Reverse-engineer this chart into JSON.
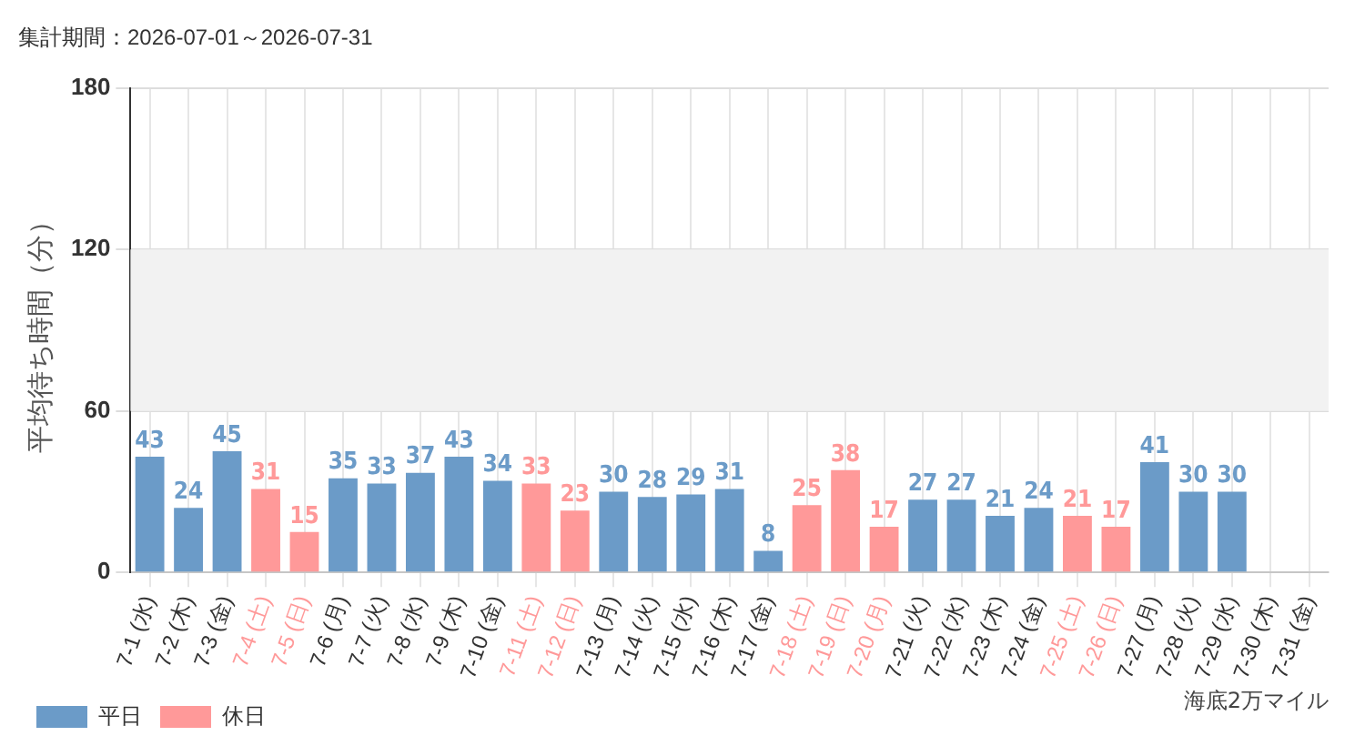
{
  "chart_data": {
    "type": "bar",
    "title": "集計期間：2026-07-01～2026-07-31",
    "ylabel": "平均待ち時間（分）",
    "categories": [
      "7-1 (水)",
      "7-2 (木)",
      "7-3 (金)",
      "7-4 (土)",
      "7-5 (日)",
      "7-6 (月)",
      "7-7 (火)",
      "7-8 (水)",
      "7-9 (木)",
      "7-10 (金)",
      "7-11 (土)",
      "7-12 (日)",
      "7-13 (月)",
      "7-14 (火)",
      "7-15 (水)",
      "7-16 (木)",
      "7-17 (金)",
      "7-18 (土)",
      "7-19 (日)",
      "7-20 (月)",
      "7-21 (火)",
      "7-22 (水)",
      "7-23 (木)",
      "7-24 (金)",
      "7-25 (土)",
      "7-26 (日)",
      "7-27 (月)",
      "7-28 (火)",
      "7-29 (水)",
      "7-30 (木)",
      "7-31 (金)"
    ],
    "series": [
      {
        "name": "平日",
        "color": "#6b9bc8",
        "values": [
          43,
          24,
          45,
          null,
          null,
          35,
          33,
          37,
          43,
          34,
          null,
          null,
          30,
          28,
          29,
          31,
          8,
          null,
          null,
          null,
          27,
          27,
          21,
          24,
          null,
          null,
          41,
          30,
          30,
          null,
          null
        ]
      },
      {
        "name": "休日",
        "color": "#ff9999",
        "values": [
          null,
          null,
          null,
          31,
          15,
          null,
          null,
          null,
          null,
          null,
          33,
          23,
          null,
          null,
          null,
          null,
          null,
          25,
          38,
          17,
          null,
          null,
          null,
          null,
          21,
          17,
          null,
          null,
          null,
          null,
          null
        ]
      }
    ],
    "ylim": [
      0,
      180
    ],
    "yticks": [
      0,
      60,
      120,
      180
    ],
    "grid": true,
    "legend": "bottom left",
    "data_labels": true,
    "bands": [
      {
        "axis": "y",
        "from": 60,
        "to": 120,
        "color": "#f2f2f2"
      }
    ],
    "annotations": [
      "海底2万マイル"
    ]
  }
}
